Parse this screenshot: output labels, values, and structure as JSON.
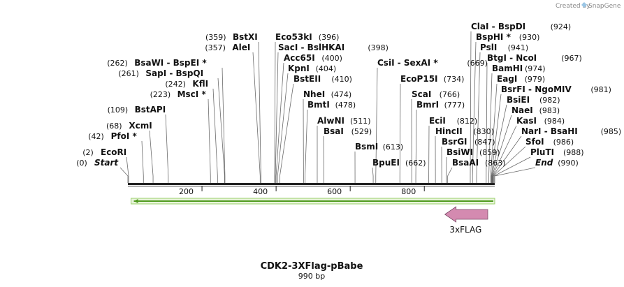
{
  "credit": {
    "text": "Created by",
    "brand": "SnapGene"
  },
  "map": {
    "title": "CDK2-3XFlag-pBabe",
    "length_label": "990 bp",
    "length_bp": 990,
    "ticks": [
      200,
      400,
      600,
      800
    ]
  },
  "feature": {
    "label": "3xFLAG",
    "start": 863,
    "end": 990,
    "direction": "left",
    "color": "#d48ab0"
  },
  "orf": {
    "start": 1,
    "end": 990,
    "direction": "left",
    "color": "#7fc241"
  },
  "sites": [
    {
      "name": "BstXI",
      "pos": "(359)",
      "bp": 359,
      "star": false,
      "row": "a1",
      "side": "left"
    },
    {
      "name": "AleI",
      "pos": "(357)",
      "bp": 357,
      "star": false,
      "row": "a2",
      "side": "left"
    },
    {
      "name": "BsaWI",
      "pos": "(262)",
      "bp": 262,
      "star": false,
      "row": "a3",
      "side": "left",
      "pair": "BspEI",
      "pair_star": true
    },
    {
      "name": "SapI",
      "pos": "(261)",
      "bp": 261,
      "star": false,
      "row": "a4",
      "side": "left",
      "pair": "BspQI",
      "pair_star": false
    },
    {
      "name": "KflI",
      "pos": "(242)",
      "bp": 242,
      "star": false,
      "row": "a5",
      "side": "left"
    },
    {
      "name": "MscI",
      "pos": "(223)",
      "bp": 223,
      "star": true,
      "row": "a6",
      "side": "left"
    },
    {
      "name": "BstAPI",
      "pos": "(109)",
      "bp": 109,
      "star": false,
      "row": "a7",
      "side": "left"
    },
    {
      "name": "XcmI",
      "pos": "(68)",
      "bp": 68,
      "star": false,
      "row": "a8",
      "side": "left"
    },
    {
      "name": "PfoI",
      "pos": "(42)",
      "bp": 42,
      "star": true,
      "row": "a9",
      "side": "left"
    },
    {
      "name": "EcoRI",
      "pos": "(2)",
      "bp": 2,
      "star": false,
      "row": "a10",
      "side": "left"
    },
    {
      "name": "Start",
      "pos": "(0)",
      "bp": 0,
      "star": false,
      "row": "a11",
      "side": "left",
      "italic": true
    },
    {
      "name": "Eco53kI",
      "pos": "(396)",
      "bp": 396,
      "star": false,
      "row": "b1",
      "side": "right"
    },
    {
      "name": "SacI",
      "pos": "(398)",
      "bp": 398,
      "star": false,
      "row": "b2",
      "side": "right",
      "pair": "BslHKAI",
      "pair_star": false
    },
    {
      "name": "Acc65I",
      "pos": "(400)",
      "bp": 400,
      "star": false,
      "row": "b3",
      "side": "right"
    },
    {
      "name": "KpnI",
      "pos": "(404)",
      "bp": 404,
      "star": false,
      "row": "b4",
      "side": "right"
    },
    {
      "name": "BstEII",
      "pos": "(410)",
      "bp": 410,
      "star": false,
      "row": "b5",
      "side": "right"
    },
    {
      "name": "NheI",
      "pos": "(474)",
      "bp": 474,
      "star": false,
      "row": "b6",
      "side": "right"
    },
    {
      "name": "BmtI",
      "pos": "(478)",
      "bp": 478,
      "star": false,
      "row": "b7",
      "side": "right"
    },
    {
      "name": "AlwNI",
      "pos": "(511)",
      "bp": 511,
      "star": false,
      "row": "b8",
      "side": "right"
    },
    {
      "name": "BsaI",
      "pos": "(529)",
      "bp": 529,
      "star": false,
      "row": "b9",
      "side": "right"
    },
    {
      "name": "BsmI",
      "pos": "(613)",
      "bp": 613,
      "star": false,
      "row": "b10",
      "side": "right"
    },
    {
      "name": "CsiI",
      "pos": "(669)",
      "bp": 669,
      "star": false,
      "row": "c1",
      "side": "right",
      "pair": "SexAI",
      "pair_star": true
    },
    {
      "name": "EcoP15I",
      "pos": "(734)",
      "bp": 734,
      "star": false,
      "row": "c2",
      "side": "right"
    },
    {
      "name": "ScaI",
      "pos": "(766)",
      "bp": 766,
      "star": false,
      "row": "c3",
      "side": "right"
    },
    {
      "name": "BmrI",
      "pos": "(777)",
      "bp": 777,
      "star": false,
      "row": "c4",
      "side": "right"
    },
    {
      "name": "EciI",
      "pos": "(812)",
      "bp": 812,
      "star": false,
      "row": "c5",
      "side": "right"
    },
    {
      "name": "HincII",
      "pos": "(830)",
      "bp": 830,
      "star": false,
      "row": "c6",
      "side": "right"
    },
    {
      "name": "BsrGI",
      "pos": "(847)",
      "bp": 847,
      "star": false,
      "row": "c7",
      "side": "right"
    },
    {
      "name": "BsiWI",
      "pos": "(859)",
      "bp": 859,
      "star": false,
      "row": "c8",
      "side": "right"
    },
    {
      "name": "BsaAI",
      "pos": "(863)",
      "bp": 863,
      "star": false,
      "row": "c9",
      "side": "right"
    },
    {
      "name": "BpuEI",
      "pos": "(662)",
      "bp": 662,
      "star": false,
      "row": "c10",
      "side": "right"
    },
    {
      "name": "ClaI",
      "pos": "(924)",
      "bp": 924,
      "star": false,
      "row": "d1",
      "side": "right",
      "pair": "BspDI",
      "pair_star": false
    },
    {
      "name": "BspHI",
      "pos": "(930)",
      "bp": 930,
      "star": true,
      "row": "d2",
      "side": "right"
    },
    {
      "name": "PslI",
      "pos": "(941)",
      "bp": 941,
      "star": false,
      "row": "d3",
      "side": "right"
    },
    {
      "name": "BtgI",
      "pos": "(967)",
      "bp": 967,
      "star": false,
      "row": "d4",
      "side": "right",
      "pair": "NcoI",
      "pair_star": false
    },
    {
      "name": "BamHI",
      "pos": "(974)",
      "bp": 974,
      "star": false,
      "row": "d5",
      "side": "right"
    },
    {
      "name": "EagI",
      "pos": "(979)",
      "bp": 979,
      "star": false,
      "row": "d6",
      "side": "right"
    },
    {
      "name": "BsrFI",
      "pos": "(981)",
      "bp": 981,
      "star": false,
      "row": "d7",
      "side": "right",
      "pair": "NgoMIV",
      "pair_star": false
    },
    {
      "name": "BsiEI",
      "pos": "(982)",
      "bp": 982,
      "star": false,
      "row": "d8",
      "side": "right"
    },
    {
      "name": "NaeI",
      "pos": "(983)",
      "bp": 983,
      "star": false,
      "row": "d9",
      "side": "right"
    },
    {
      "name": "KasI",
      "pos": "(984)",
      "bp": 984,
      "star": false,
      "row": "d10",
      "side": "right"
    },
    {
      "name": "NarI",
      "pos": "(985)",
      "bp": 985,
      "star": false,
      "row": "d11",
      "side": "right",
      "pair": "BsaHI",
      "pair_star": false
    },
    {
      "name": "SfoI",
      "pos": "(986)",
      "bp": 986,
      "star": false,
      "row": "d12",
      "side": "right"
    },
    {
      "name": "PluTI",
      "pos": "(988)",
      "bp": 988,
      "star": false,
      "row": "d13",
      "side": "right"
    },
    {
      "name": "End",
      "pos": "(990)",
      "bp": 990,
      "star": false,
      "row": "d14",
      "side": "right",
      "italic": true
    }
  ]
}
